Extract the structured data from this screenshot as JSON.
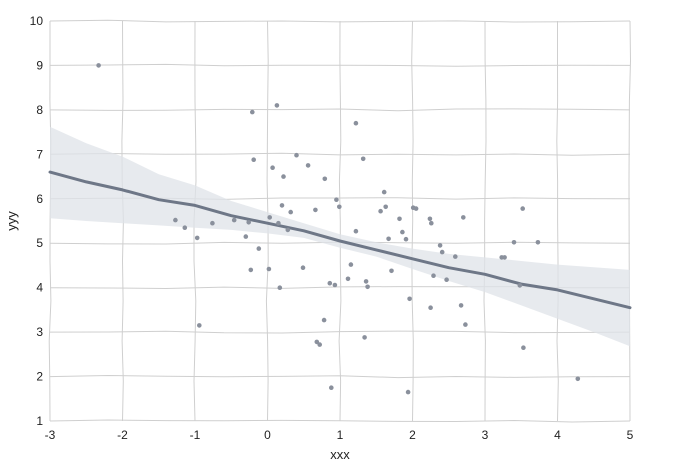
{
  "chart_data": {
    "type": "scatter",
    "title": "",
    "xlabel": "xxx",
    "ylabel": "yyy",
    "xlim": [
      -3,
      5
    ],
    "ylim": [
      1,
      10
    ],
    "x_ticks": [
      "-3",
      "-2",
      "-1",
      "0",
      "1",
      "2",
      "3",
      "4",
      "5"
    ],
    "y_ticks": [
      "1",
      "2",
      "3",
      "4",
      "5",
      "6",
      "7",
      "8",
      "9",
      "10"
    ],
    "grid": true,
    "style": "hand-drawn (xkcd-like) grid",
    "colors": {
      "points": "#8a909c",
      "trend_line": "#6e7787",
      "confidence_band": "#dfe3e8",
      "grid": "#cfcfcf"
    },
    "series": [
      {
        "kind": "scatter",
        "points": [
          [
            -2.33,
            9.0
          ],
          [
            -1.27,
            5.52
          ],
          [
            -1.14,
            5.35
          ],
          [
            -0.97,
            5.12
          ],
          [
            -0.94,
            3.15
          ],
          [
            -0.76,
            5.45
          ],
          [
            -0.46,
            5.52
          ],
          [
            -0.3,
            5.15
          ],
          [
            -0.26,
            5.47
          ],
          [
            -0.23,
            4.4
          ],
          [
            -0.21,
            7.95
          ],
          [
            -0.19,
            6.88
          ],
          [
            -0.12,
            4.88
          ],
          [
            0.03,
            5.58
          ],
          [
            0.02,
            4.42
          ],
          [
            0.07,
            6.7
          ],
          [
            0.13,
            8.1
          ],
          [
            0.15,
            5.45
          ],
          [
            0.17,
            4.0
          ],
          [
            0.2,
            5.85
          ],
          [
            0.22,
            6.5
          ],
          [
            0.28,
            5.3
          ],
          [
            0.32,
            5.7
          ],
          [
            0.4,
            6.98
          ],
          [
            0.49,
            4.45
          ],
          [
            0.56,
            6.75
          ],
          [
            0.66,
            5.75
          ],
          [
            0.68,
            2.78
          ],
          [
            0.72,
            2.72
          ],
          [
            0.78,
            3.27
          ],
          [
            0.79,
            6.45
          ],
          [
            0.86,
            4.1
          ],
          [
            0.88,
            1.75
          ],
          [
            0.93,
            4.06
          ],
          [
            0.95,
            5.98
          ],
          [
            0.99,
            5.82
          ],
          [
            1.11,
            4.2
          ],
          [
            1.15,
            4.52
          ],
          [
            1.22,
            5.27
          ],
          [
            1.22,
            7.7
          ],
          [
            1.32,
            6.9
          ],
          [
            1.34,
            2.88
          ],
          [
            1.36,
            4.14
          ],
          [
            1.38,
            4.02
          ],
          [
            1.56,
            5.72
          ],
          [
            1.61,
            6.15
          ],
          [
            1.63,
            5.82
          ],
          [
            1.67,
            5.1
          ],
          [
            1.71,
            4.38
          ],
          [
            1.82,
            5.55
          ],
          [
            1.86,
            5.25
          ],
          [
            1.91,
            5.09
          ],
          [
            1.94,
            1.65
          ],
          [
            1.96,
            3.75
          ],
          [
            2.01,
            5.8
          ],
          [
            2.05,
            5.78
          ],
          [
            2.24,
            5.55
          ],
          [
            2.25,
            3.55
          ],
          [
            2.26,
            5.45
          ],
          [
            2.29,
            4.27
          ],
          [
            2.38,
            4.95
          ],
          [
            2.41,
            4.8
          ],
          [
            2.47,
            4.18
          ],
          [
            2.59,
            4.7
          ],
          [
            2.67,
            3.6
          ],
          [
            2.7,
            5.58
          ],
          [
            2.73,
            3.17
          ],
          [
            3.23,
            4.68
          ],
          [
            3.27,
            4.68
          ],
          [
            3.4,
            5.02
          ],
          [
            3.48,
            4.05
          ],
          [
            3.52,
            5.78
          ],
          [
            3.53,
            2.65
          ],
          [
            3.73,
            5.02
          ],
          [
            4.28,
            1.95
          ]
        ]
      },
      {
        "kind": "trend_line",
        "x": [
          -3.0,
          -2.5,
          -2.0,
          -1.5,
          -1.0,
          -0.5,
          0.0,
          0.5,
          1.0,
          1.5,
          2.0,
          2.5,
          3.0,
          3.5,
          4.0,
          4.5,
          5.0
        ],
        "y": [
          6.6,
          6.38,
          6.2,
          5.98,
          5.85,
          5.62,
          5.45,
          5.28,
          5.05,
          4.85,
          4.65,
          4.45,
          4.3,
          4.08,
          3.95,
          3.75,
          3.55
        ],
        "ci_lower": [
          5.56,
          5.5,
          5.45,
          5.4,
          5.35,
          5.3,
          5.22,
          5.12,
          4.9,
          4.7,
          4.42,
          4.15,
          3.9,
          3.6,
          3.3,
          3.0,
          2.68
        ],
        "ci_upper": [
          7.62,
          7.25,
          6.95,
          6.55,
          6.3,
          5.95,
          5.7,
          5.45,
          5.2,
          5.02,
          4.88,
          4.76,
          4.68,
          4.6,
          4.52,
          4.46,
          4.4
        ]
      }
    ]
  }
}
